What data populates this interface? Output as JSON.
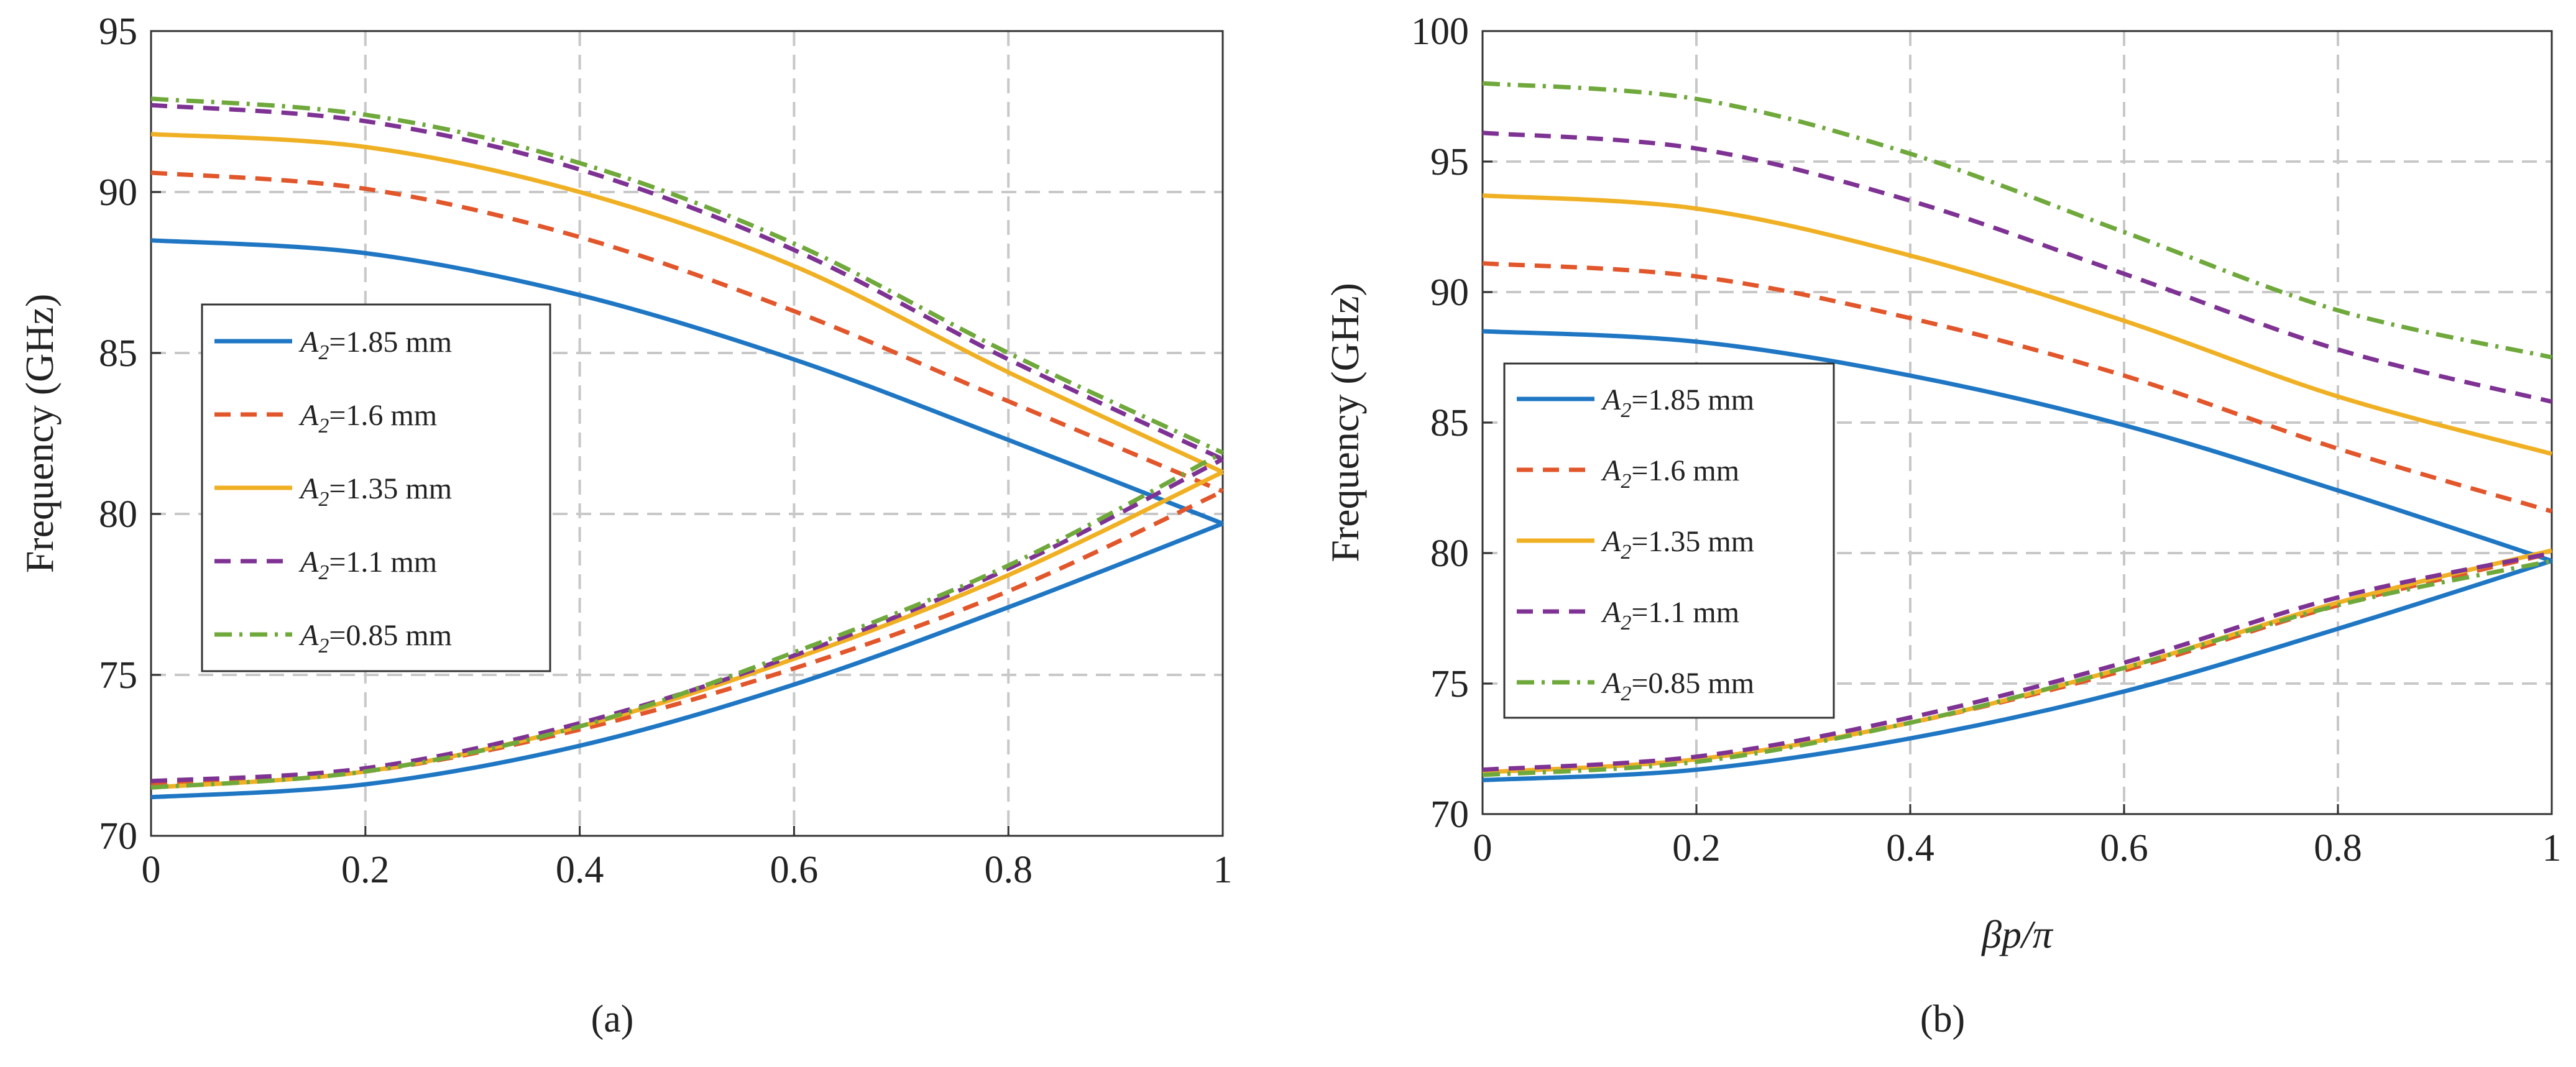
{
  "colors": {
    "blue": "#1f77c4",
    "orange": "#e2562b",
    "yellow": "#f0b024",
    "purple": "#7e3293",
    "green": "#6fa83b",
    "grid": "#c8c8c8",
    "axis": "#333333"
  },
  "legend_labels": [
    {
      "pre": "A",
      "sub": "2",
      "post": "=1.85 mm"
    },
    {
      "pre": "A",
      "sub": "2",
      "post": "=1.6 mm"
    },
    {
      "pre": "A",
      "sub": "2",
      "post": "=1.35 mm"
    },
    {
      "pre": "A",
      "sub": "2",
      "post": "=1.1 mm"
    },
    {
      "pre": "A",
      "sub": "2",
      "post": "=0.85 mm"
    }
  ],
  "chart_data": [
    {
      "type": "line",
      "panel_label": "(a)",
      "ylabel": "Frequency (GHz)",
      "xlabel": "",
      "xlim": [
        0,
        1
      ],
      "ylim": [
        70,
        95
      ],
      "xticks": [
        "0",
        "0.2",
        "0.4",
        "0.6",
        "0.8",
        "1"
      ],
      "yticks": [
        "70",
        "75",
        "80",
        "85",
        "90",
        "95"
      ],
      "grid": true,
      "legend_position": "middle-left",
      "x": [
        0,
        0.2,
        0.4,
        0.6,
        0.8,
        1.0
      ],
      "series": [
        {
          "name": "A2=1.85 mm",
          "color": "blue",
          "dash": "solid",
          "upper": [
            88.5,
            88.1,
            86.8,
            84.8,
            82.3,
            79.7
          ],
          "lower": [
            71.2,
            71.6,
            72.8,
            74.7,
            77.1,
            79.7
          ]
        },
        {
          "name": "A2=1.6 mm",
          "color": "orange",
          "dash": "dashed",
          "upper": [
            90.6,
            90.1,
            88.6,
            86.3,
            83.5,
            80.7
          ],
          "lower": [
            71.6,
            72.0,
            73.3,
            75.2,
            77.6,
            80.7
          ]
        },
        {
          "name": "A2=1.35 mm",
          "color": "yellow",
          "dash": "solid",
          "upper": [
            91.8,
            91.4,
            90.0,
            87.7,
            84.4,
            81.3
          ],
          "lower": [
            71.5,
            72.0,
            73.4,
            75.5,
            78.1,
            81.3
          ]
        },
        {
          "name": "A2=1.1 mm",
          "color": "purple",
          "dash": "dashed",
          "upper": [
            92.7,
            92.2,
            90.7,
            88.2,
            84.8,
            81.7
          ],
          "lower": [
            71.7,
            72.1,
            73.5,
            75.6,
            78.3,
            81.7
          ]
        },
        {
          "name": "A2=0.85 mm",
          "color": "green",
          "dash": "dashdot",
          "upper": [
            92.9,
            92.4,
            90.9,
            88.4,
            85.0,
            81.9
          ],
          "lower": [
            71.5,
            72.0,
            73.4,
            75.7,
            78.4,
            81.9
          ]
        }
      ]
    },
    {
      "type": "line",
      "panel_label": "(b)",
      "ylabel": "Frequency (GHz)",
      "xlabel": "βp/π",
      "xlim": [
        0,
        1
      ],
      "ylim": [
        70,
        100
      ],
      "xticks": [
        "0",
        "0.2",
        "0.4",
        "0.6",
        "0.8",
        "1"
      ],
      "yticks": [
        "70",
        "75",
        "80",
        "85",
        "90",
        "95",
        "100"
      ],
      "grid": true,
      "legend_position": "middle-left",
      "x": [
        0,
        0.2,
        0.4,
        0.6,
        0.8,
        1.0
      ],
      "series": [
        {
          "name": "A2=1.85 mm",
          "color": "blue",
          "dash": "solid",
          "upper": [
            88.5,
            88.1,
            86.8,
            84.9,
            82.4,
            79.7
          ],
          "lower": [
            71.3,
            71.7,
            72.9,
            74.7,
            77.1,
            79.7
          ]
        },
        {
          "name": "A2=1.6 mm",
          "color": "orange",
          "dash": "dashed",
          "upper": [
            91.1,
            90.6,
            89.0,
            86.8,
            84.0,
            81.6
          ],
          "lower": [
            71.6,
            72.1,
            73.5,
            75.5,
            78.0,
            80.0
          ]
        },
        {
          "name": "A2=1.35 mm",
          "color": "yellow",
          "dash": "solid",
          "upper": [
            93.7,
            93.2,
            91.4,
            88.9,
            86.0,
            83.8
          ],
          "lower": [
            71.6,
            72.1,
            73.5,
            75.6,
            78.1,
            80.1
          ]
        },
        {
          "name": "A2=1.1 mm",
          "color": "purple",
          "dash": "dashed",
          "upper": [
            96.1,
            95.5,
            93.5,
            90.7,
            87.8,
            85.8
          ],
          "lower": [
            71.7,
            72.2,
            73.7,
            75.8,
            78.3,
            80.0
          ]
        },
        {
          "name": "A2=0.85 mm",
          "color": "green",
          "dash": "dashdot",
          "upper": [
            98.0,
            97.4,
            95.3,
            92.3,
            89.3,
            87.5
          ],
          "lower": [
            71.5,
            72.0,
            73.5,
            75.6,
            78.0,
            79.7
          ]
        }
      ]
    }
  ]
}
